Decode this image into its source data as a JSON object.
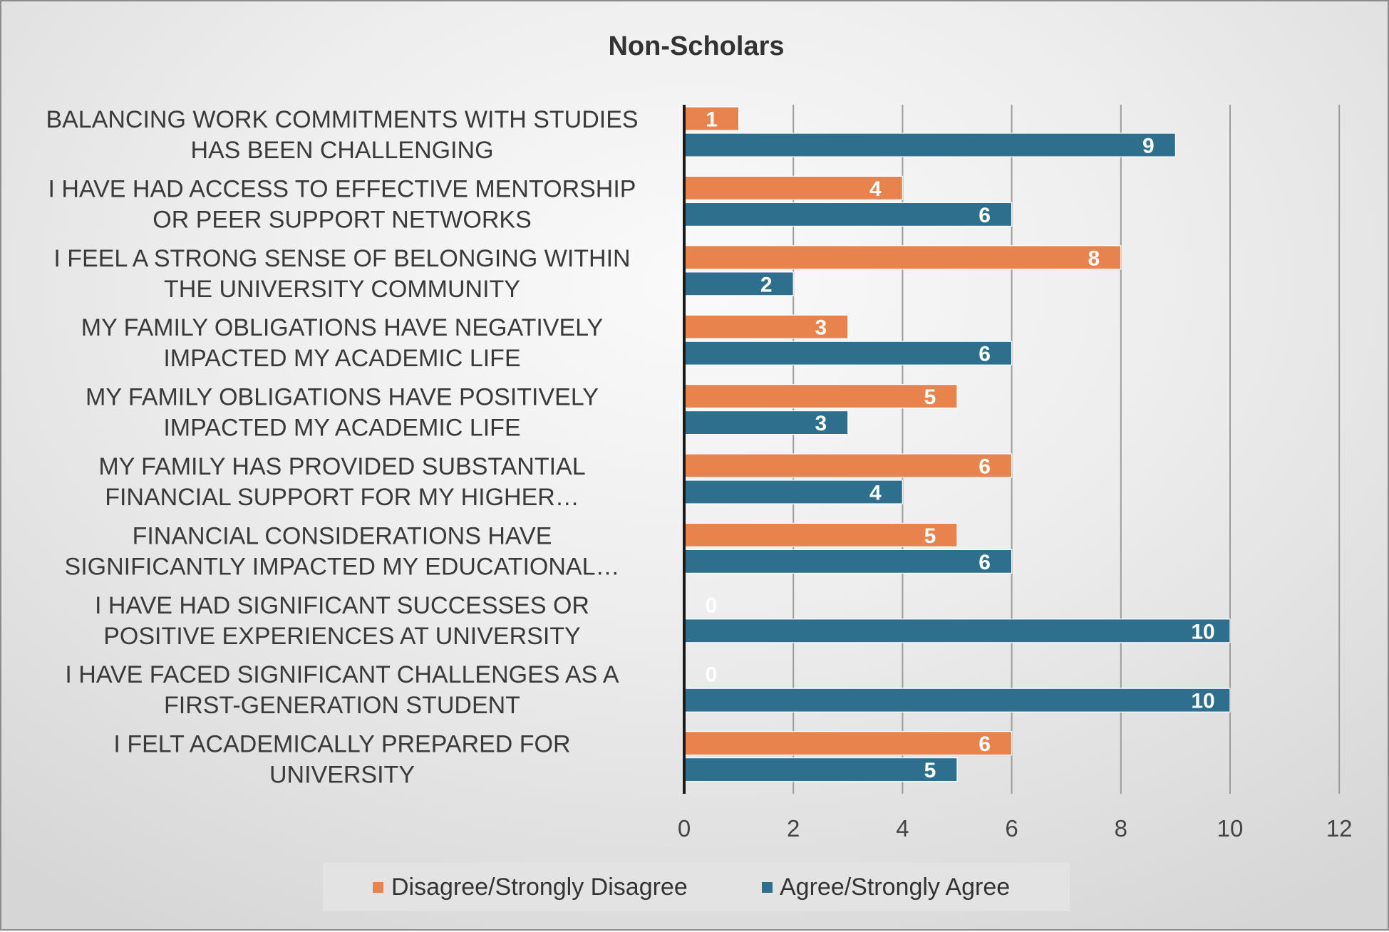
{
  "chart_data": {
    "type": "bar",
    "orientation": "horizontal",
    "title": "Non-Scholars",
    "categories": [
      [
        "BALANCING WORK COMMITMENTS WITH STUDIES",
        "HAS BEEN CHALLENGING"
      ],
      [
        "I HAVE HAD ACCESS TO EFFECTIVE MENTORSHIP",
        "OR PEER SUPPORT NETWORKS"
      ],
      [
        "I FEEL A STRONG SENSE OF BELONGING WITHIN",
        "THE UNIVERSITY COMMUNITY"
      ],
      [
        "MY FAMILY OBLIGATIONS HAVE NEGATIVELY",
        "IMPACTED MY ACADEMIC LIFE"
      ],
      [
        "MY FAMILY OBLIGATIONS HAVE POSITIVELY",
        "IMPACTED MY ACADEMIC LIFE"
      ],
      [
        "MY FAMILY HAS PROVIDED SUBSTANTIAL",
        "FINANCIAL SUPPORT FOR MY HIGHER…"
      ],
      [
        "FINANCIAL CONSIDERATIONS HAVE",
        "SIGNIFICANTLY IMPACTED MY EDUCATIONAL…"
      ],
      [
        "I HAVE HAD SIGNIFICANT SUCCESSES OR",
        "POSITIVE EXPERIENCES AT UNIVERSITY"
      ],
      [
        "I HAVE FACED SIGNIFICANT CHALLENGES AS A",
        "FIRST-GENERATION STUDENT"
      ],
      [
        "I FELT ACADEMICALLY PREPARED FOR",
        "UNIVERSITY"
      ]
    ],
    "series": [
      {
        "name": "Disagree/Strongly Disagree",
        "color": "#e8834e",
        "values": [
          1,
          4,
          8,
          3,
          5,
          6,
          5,
          0,
          0,
          6
        ]
      },
      {
        "name": "Agree/Strongly Agree",
        "color": "#2e6f8e",
        "values": [
          9,
          6,
          2,
          6,
          3,
          4,
          6,
          10,
          10,
          5
        ]
      }
    ],
    "xlim": [
      0,
      12
    ],
    "xticks": [
      0,
      2,
      4,
      6,
      8,
      10,
      12
    ],
    "grid": true,
    "legend_position": "bottom"
  }
}
